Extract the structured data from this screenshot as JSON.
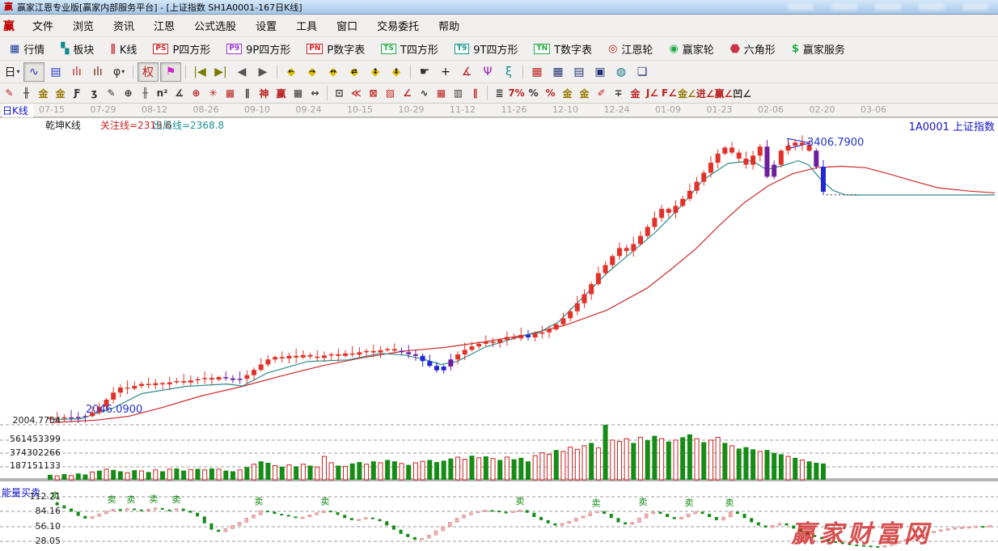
{
  "window": {
    "logo": "赢",
    "title": "赢家江恩专业版[赢家内部服务平台] - [上证指数  SH1A0001-167日K线]"
  },
  "menu": {
    "logo": "赢",
    "items": [
      "文件",
      "浏览",
      "资讯",
      "江恩",
      "公式选股",
      "设置",
      "工具",
      "窗口",
      "交易委托",
      "帮助"
    ]
  },
  "toolbar_main": {
    "items": [
      {
        "kind": "glyph",
        "icon": "▦",
        "color": "#1b3e9c",
        "label": "行情",
        "name": "quotes"
      },
      {
        "kind": "glyph",
        "icon": "▚",
        "color": "#0a8a8a",
        "label": "板块",
        "name": "sectors"
      },
      {
        "kind": "glyph",
        "icon": "∥",
        "color": "#cc2222",
        "label": "K线",
        "name": "kline"
      },
      {
        "kind": "box",
        "icon": "PS",
        "color": "#cc2222",
        "label": "P四方形",
        "name": "p-square"
      },
      {
        "kind": "box",
        "icon": "P9",
        "color": "#9933cc",
        "label": "9P四方形",
        "name": "9p-square"
      },
      {
        "kind": "box",
        "icon": "PN",
        "color": "#cc2222",
        "label": "P数字表",
        "name": "p-number-table"
      },
      {
        "kind": "box",
        "icon": "TS",
        "color": "#22aa44",
        "label": "T四方形",
        "name": "t-square"
      },
      {
        "kind": "box",
        "icon": "T9",
        "color": "#119988",
        "label": "9T四方形",
        "name": "9t-square"
      },
      {
        "kind": "box",
        "icon": "TN",
        "color": "#22aa44",
        "label": "T数字表",
        "name": "t-number-table"
      },
      {
        "kind": "glyph",
        "icon": "◎",
        "color": "#cc2222",
        "label": "江恩轮",
        "name": "gann-wheel"
      },
      {
        "kind": "glyph",
        "icon": "◉",
        "color": "#22aa44",
        "label": "赢家轮",
        "name": "winner-wheel"
      },
      {
        "kind": "hex",
        "icon": "",
        "color": "#cc3344",
        "label": "六角形",
        "name": "hexagon"
      },
      {
        "kind": "glyph",
        "icon": "$",
        "color": "#22aa44",
        "label": "赢家服务",
        "name": "winner-service"
      }
    ]
  },
  "toolbar_icons": {
    "groups": [
      [
        {
          "g": "日",
          "c": "#222222",
          "dd": 1,
          "name": "period-select"
        },
        {
          "g": "∿",
          "c": "#2233cc",
          "p": 1,
          "name": "zigzag-view"
        },
        {
          "g": "▤",
          "c": "#2233cc",
          "name": "report-view"
        },
        {
          "g": "ılı",
          "c": "#bb2222",
          "name": "bars-3"
        },
        {
          "g": "ılı",
          "c": "#772222",
          "name": "bars-9"
        },
        {
          "g": "φ",
          "c": "#333333",
          "dd": 1,
          "name": "candle-style"
        }
      ],
      [
        {
          "g": "权",
          "c": "#bb2222",
          "p": 1,
          "name": "restore-rights"
        },
        {
          "g": "⚑",
          "c": "#cc22cc",
          "p": 1,
          "name": "mark-flag"
        }
      ],
      [
        {
          "g": "|◀",
          "c": "#7a7a00",
          "name": "first-page"
        },
        {
          "g": "▶|",
          "c": "#7a7a00",
          "name": "last-page"
        },
        {
          "g": "◀",
          "c": "#555555",
          "name": "prev-page"
        },
        {
          "g": "▶",
          "c": "#555555",
          "name": "next-page"
        }
      ],
      [
        {
          "g": "◆",
          "c": "#ddbb00",
          "a": "←",
          "name": "gann-diamond-left"
        },
        {
          "g": "◆",
          "c": "#ddbb00",
          "a": "→",
          "name": "gann-diamond-right"
        },
        {
          "g": "◆",
          "c": "#ddbb00",
          "a": "↔",
          "name": "gann-diamond-both"
        },
        {
          "g": "◆",
          "c": "#ddbb00",
          "a": "⇄",
          "name": "gann-diamond-swap"
        },
        {
          "g": "◆",
          "c": "#ddbb00",
          "a": "↕",
          "name": "gann-diamond-vert"
        },
        {
          "g": "◆",
          "c": "#ddbb00",
          "a": "⇕",
          "name": "gann-diamond-expand"
        }
      ],
      [
        {
          "g": "☛",
          "c": "#333333",
          "name": "hand-tool"
        },
        {
          "g": "+",
          "c": "#111111",
          "name": "crosshair-tool"
        },
        {
          "g": "∡",
          "c": "#bb2222",
          "name": "angle-measure"
        },
        {
          "g": "Ψ",
          "c": "#9922bb",
          "name": "gann-shape-tool"
        },
        {
          "g": "ξ",
          "c": "#118888",
          "name": "wave-tool"
        }
      ],
      [
        {
          "g": "▦",
          "c": "#bb2222",
          "name": "calendar"
        },
        {
          "g": "▦",
          "c": "#223377",
          "name": "calculator"
        },
        {
          "g": "▤",
          "c": "#223377",
          "name": "notebook"
        },
        {
          "g": "▣",
          "c": "#223377",
          "name": "save"
        },
        {
          "g": "◍",
          "c": "#117788",
          "name": "web-link"
        },
        {
          "g": "❏",
          "c": "#223377",
          "name": "remote-service"
        }
      ]
    ]
  },
  "toolbar_draw": {
    "groups": [
      [
        {
          "g": "✎",
          "c": "#bb2222"
        },
        {
          "g": "╫",
          "c": "#333333"
        },
        {
          "g": "金",
          "c": "#997700"
        },
        {
          "g": "金",
          "c": "#997700"
        },
        {
          "g": "Ƒ",
          "c": "#333333"
        },
        {
          "g": "ʒ",
          "c": "#333333"
        },
        {
          "g": "✎",
          "c": "#333333"
        },
        {
          "g": "⊕",
          "c": "#333333"
        },
        {
          "g": "╫",
          "c": "#555555"
        },
        {
          "g": "n²",
          "c": "#333333"
        },
        {
          "g": "∡",
          "c": "#333333"
        },
        {
          "g": "⊕",
          "c": "#bb2222"
        },
        {
          "g": "✳",
          "c": "#bb2222"
        },
        {
          "g": "▦",
          "c": "#bb2222"
        },
        {
          "g": "∥",
          "c": "#333333"
        },
        {
          "g": "神",
          "c": "#bb2222"
        },
        {
          "g": "赢",
          "c": "#bb2222"
        },
        {
          "g": "▦",
          "c": "#333333"
        },
        {
          "g": "↔",
          "c": "#333333"
        }
      ],
      [
        {
          "g": "⊡",
          "c": "#333333"
        },
        {
          "g": "≪",
          "c": "#bb2222"
        },
        {
          "g": "⊠",
          "c": "#bb2222"
        },
        {
          "g": "▨",
          "c": "#bb2222"
        },
        {
          "g": "∠",
          "c": "#bb2222"
        },
        {
          "g": "∿",
          "c": "#333333"
        },
        {
          "g": "▦",
          "c": "#bb2222"
        },
        {
          "g": "▥",
          "c": "#333333"
        },
        {
          "g": "∥",
          "c": "#bb2222"
        }
      ],
      [
        {
          "g": "≣",
          "c": "#333333"
        },
        {
          "g": "7%",
          "c": "#bb2222"
        },
        {
          "g": "%",
          "c": "#333333"
        },
        {
          "g": "%",
          "c": "#bb2222"
        },
        {
          "g": "金",
          "c": "#997700"
        },
        {
          "g": "金",
          "c": "#997700"
        },
        {
          "g": "✐",
          "c": "#bb2222"
        },
        {
          "g": "∓",
          "c": "#333333"
        },
        {
          "g": "金",
          "c": "#bb2222"
        },
        {
          "g": "J∠",
          "c": "#bb2222"
        },
        {
          "g": "F∠",
          "c": "#bb2222"
        },
        {
          "g": "金∠",
          "c": "#997700"
        },
        {
          "g": "进∠",
          "c": "#bb2222"
        },
        {
          "g": "赢∠",
          "c": "#bb2222"
        },
        {
          "g": "凹∠",
          "c": "#333333"
        }
      ]
    ]
  },
  "chart_labels": {
    "period": "日K线",
    "qiankun": "乾坤K线",
    "attention": "关注线=2319.6",
    "exit": "出局线=2368.8",
    "symbol": "1A0001  上证指数",
    "peak": "3406.7900",
    "start": "2046.0900",
    "floor": "2004.7704",
    "vol1": "561453399",
    "vol2": "374302266",
    "vol3": "187151133",
    "indicator": "能量买卖",
    "i1": "112.21",
    "i2": "84.16",
    "i3": "56.10",
    "i4": "28.05",
    "watermark": "赢家财富网"
  },
  "chart_data": {
    "type": "candlestick",
    "title": "上证指数 SH1A0001-167日K线",
    "symbol": "1A0001",
    "symbol_name": "上证指数",
    "period": "日K线",
    "kline_style": "乾坤K线",
    "attention_line": 2319.6,
    "exit_line": 2368.8,
    "annotations": {
      "peak_price": 3406.79,
      "start_price": 2046.09,
      "floor_price": 2004.7704
    },
    "x_dates": [
      "07-15",
      "07-29",
      "08-12",
      "08-26",
      "09-10",
      "09-24",
      "10-15",
      "10-29",
      "11-12",
      "11-26",
      "12-10",
      "12-24",
      "01-09",
      "01-23",
      "02-06",
      "02-20",
      "03-06"
    ],
    "price_ylim": [
      2004.77,
      3530
    ],
    "closes": [
      2040,
      2036,
      2042,
      2038,
      2044,
      2048,
      2065,
      2095,
      2130,
      2165,
      2190,
      2185,
      2198,
      2208,
      2202,
      2212,
      2206,
      2216,
      2222,
      2215,
      2226,
      2232,
      2238,
      2230,
      2242,
      2236,
      2228,
      2234,
      2252,
      2278,
      2305,
      2330,
      2342,
      2335,
      2348,
      2340,
      2352,
      2344,
      2338,
      2350,
      2356,
      2348,
      2360,
      2354,
      2366,
      2372,
      2365,
      2376,
      2382,
      2374,
      2366,
      2356,
      2348,
      2322,
      2298,
      2276,
      2295,
      2330,
      2355,
      2378,
      2395,
      2408,
      2418,
      2412,
      2428,
      2442,
      2435,
      2452,
      2440,
      2458,
      2465,
      2480,
      2505,
      2535,
      2570,
      2610,
      2655,
      2705,
      2760,
      2800,
      2845,
      2885,
      2870,
      2905,
      2945,
      2990,
      3035,
      3080,
      3060,
      3095,
      3130,
      3170,
      3215,
      3260,
      3310,
      3355,
      3385,
      3360,
      3330,
      3300,
      3345,
      3390,
      3240,
      3300,
      3370,
      3395,
      3410,
      3398,
      3370,
      3290,
      3165
    ],
    "candle_colors": "rrrppprrrrrrrrrrrrrrrrrrrppprrrrrrrrrrrrrrrrrrrrrrpppbbbbprrrrrrrrrrbrrrrrrrrrrrrrrrrrrrrrrrrrrrrrrrrrpprrrrrpb",
    "color_legend": {
      "r": "#e23128",
      "p": "#6f1f9e",
      "b": "#2126d8"
    },
    "ma_short": [
      [
        62,
        2030
      ],
      [
        100,
        2035
      ],
      [
        140,
        2088
      ],
      [
        175,
        2160
      ],
      [
        230,
        2196
      ],
      [
        280,
        2208
      ],
      [
        300,
        2198
      ],
      [
        330,
        2262
      ],
      [
        380,
        2320
      ],
      [
        430,
        2328
      ],
      [
        470,
        2360
      ],
      [
        500,
        2352
      ],
      [
        525,
        2330
      ],
      [
        545,
        2305
      ],
      [
        565,
        2320
      ],
      [
        600,
        2392
      ],
      [
        650,
        2452
      ],
      [
        665,
        2462
      ],
      [
        690,
        2515
      ],
      [
        720,
        2636
      ],
      [
        750,
        2758
      ],
      [
        780,
        2860
      ],
      [
        810,
        2962
      ],
      [
        840,
        3084
      ],
      [
        870,
        3226
      ],
      [
        900,
        3306
      ],
      [
        930,
        3320
      ],
      [
        948,
        3275
      ],
      [
        970,
        3298
      ],
      [
        987,
        3320
      ],
      [
        1000,
        3298
      ],
      [
        1015,
        3226
      ],
      [
        1030,
        3172
      ],
      [
        1045,
        3150
      ],
      [
        1060,
        3149
      ],
      [
        1230,
        3149
      ]
    ],
    "ma_long": [
      [
        62,
        2015
      ],
      [
        120,
        2028
      ],
      [
        160,
        2048
      ],
      [
        200,
        2090
      ],
      [
        250,
        2150
      ],
      [
        300,
        2196
      ],
      [
        350,
        2250
      ],
      [
        400,
        2300
      ],
      [
        450,
        2340
      ],
      [
        500,
        2372
      ],
      [
        550,
        2390
      ],
      [
        600,
        2418
      ],
      [
        650,
        2452
      ],
      [
        700,
        2502
      ],
      [
        750,
        2575
      ],
      [
        800,
        2685
      ],
      [
        830,
        2780
      ],
      [
        860,
        2880
      ],
      [
        890,
        3000
      ],
      [
        920,
        3110
      ],
      [
        950,
        3195
      ],
      [
        980,
        3255
      ],
      [
        1010,
        3285
      ],
      [
        1040,
        3292
      ],
      [
        1070,
        3285
      ],
      [
        1100,
        3253
      ],
      [
        1130,
        3218
      ],
      [
        1160,
        3185
      ],
      [
        1200,
        3168
      ],
      [
        1230,
        3160
      ]
    ],
    "projection": [
      [
        1022,
        3150
      ],
      [
        1060,
        3150
      ]
    ],
    "flag": [
      [
        974,
        3430
      ],
      [
        1002,
        3408
      ],
      [
        976,
        3382
      ]
    ],
    "volume": {
      "ticks": [
        561453399,
        374302266,
        187151133
      ],
      "values_millions": [
        70,
        55,
        80,
        60,
        90,
        75,
        110,
        130,
        150,
        140,
        120,
        100,
        135,
        125,
        110,
        140,
        120,
        150,
        160,
        130,
        145,
        155,
        140,
        160,
        150,
        130,
        120,
        140,
        180,
        220,
        260,
        240,
        200,
        185,
        210,
        190,
        220,
        200,
        180,
        330,
        240,
        200,
        190,
        230,
        250,
        220,
        260,
        240,
        280,
        260,
        230,
        210,
        240,
        260,
        280,
        250,
        270,
        300,
        320,
        290,
        340,
        310,
        330,
        300,
        280,
        320,
        290,
        310,
        260,
        340,
        380,
        360,
        420,
        400,
        460,
        430,
        480,
        520,
        450,
        775,
        560,
        540,
        580,
        520,
        600,
        560,
        620,
        580,
        540,
        560,
        600,
        640,
        580,
        530,
        560,
        600,
        520,
        480,
        440,
        460,
        430,
        400,
        420,
        380,
        360,
        330,
        310,
        280,
        260,
        240,
        230
      ],
      "colors": "grgrggrgrggrgrgrgrggrgrgrggrgrggrgrgrgrrrgrggrgrggrgrrggggrrgrgrgrgggrrrgrrrrgrgrrrgrggrgrggrgrrgrgggrgggrgrggg",
      "up_color": "#168c16",
      "down_color": "#cc2222"
    },
    "indicator": {
      "name": "能量买卖",
      "ticks": [
        112.21,
        84.16,
        56.1,
        28.05
      ],
      "values": [
        102,
        96,
        90,
        84,
        76,
        71,
        75,
        80,
        85,
        89,
        87,
        90,
        88,
        86,
        89,
        91,
        88,
        87,
        90,
        86,
        82,
        75,
        62,
        50,
        46,
        52,
        58,
        64,
        72,
        78,
        86,
        84,
        80,
        78,
        75,
        72,
        74,
        78,
        82,
        86,
        83,
        78,
        72,
        68,
        70,
        73,
        70,
        66,
        58,
        50,
        42,
        36,
        31,
        34,
        40,
        48,
        56,
        64,
        72,
        78,
        82,
        85,
        87,
        86,
        84,
        82,
        85,
        87,
        82,
        74,
        68,
        62,
        58,
        62,
        66,
        72,
        76,
        82,
        85,
        80,
        72,
        64,
        60,
        64,
        72,
        80,
        84,
        80,
        74,
        70,
        74,
        80,
        84,
        80,
        74,
        68,
        74,
        84,
        80,
        72,
        64,
        58,
        54,
        58,
        62,
        58,
        52,
        46,
        40,
        36,
        32,
        28,
        26,
        24,
        22,
        21,
        20,
        19,
        18,
        20,
        24,
        28,
        32,
        36,
        40,
        44,
        47,
        50,
        52,
        54,
        55,
        56,
        57,
        57,
        58
      ],
      "sell_text": "卖",
      "sell_color": "#168c16",
      "rise_color": "#eeb0b0",
      "sell_markers": [
        [
          68,
          104
        ],
        [
          138,
          97
        ],
        [
          162,
          97
        ],
        [
          190,
          98
        ],
        [
          218,
          97
        ],
        [
          320,
          93
        ],
        [
          402,
          93
        ],
        [
          643,
          94
        ],
        [
          737,
          90
        ],
        [
          795,
          92
        ],
        [
          852,
          91
        ],
        [
          902,
          91
        ]
      ]
    }
  }
}
